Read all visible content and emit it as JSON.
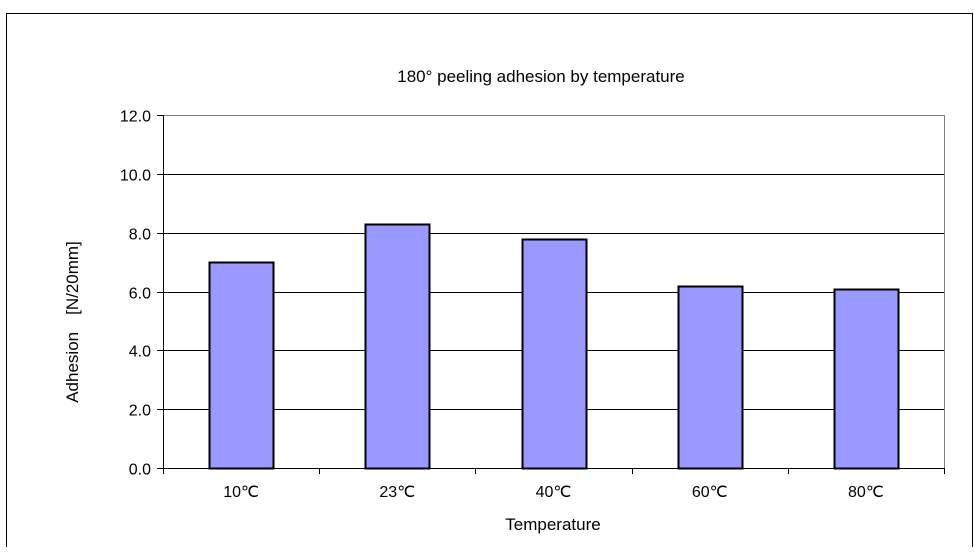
{
  "chart_data": {
    "type": "bar",
    "title": "180° peeling adhesion by temperature",
    "xlabel": "Temperature",
    "ylabel": "Adhesion　[N/20mm]",
    "categories": [
      "10℃",
      "23℃",
      "40℃",
      "60℃",
      "80℃"
    ],
    "values": [
      7.0,
      8.3,
      7.8,
      6.2,
      6.1
    ],
    "ylim": [
      0,
      12
    ],
    "yticks": [
      "0.0",
      "2.0",
      "4.0",
      "6.0",
      "8.0",
      "10.0",
      "12.0"
    ],
    "grid": true,
    "legend": "none",
    "colors": {
      "bar_fill": "#9999ff",
      "bar_stroke": "#000000",
      "grid": "#000000",
      "plot_border": "#808080"
    }
  }
}
